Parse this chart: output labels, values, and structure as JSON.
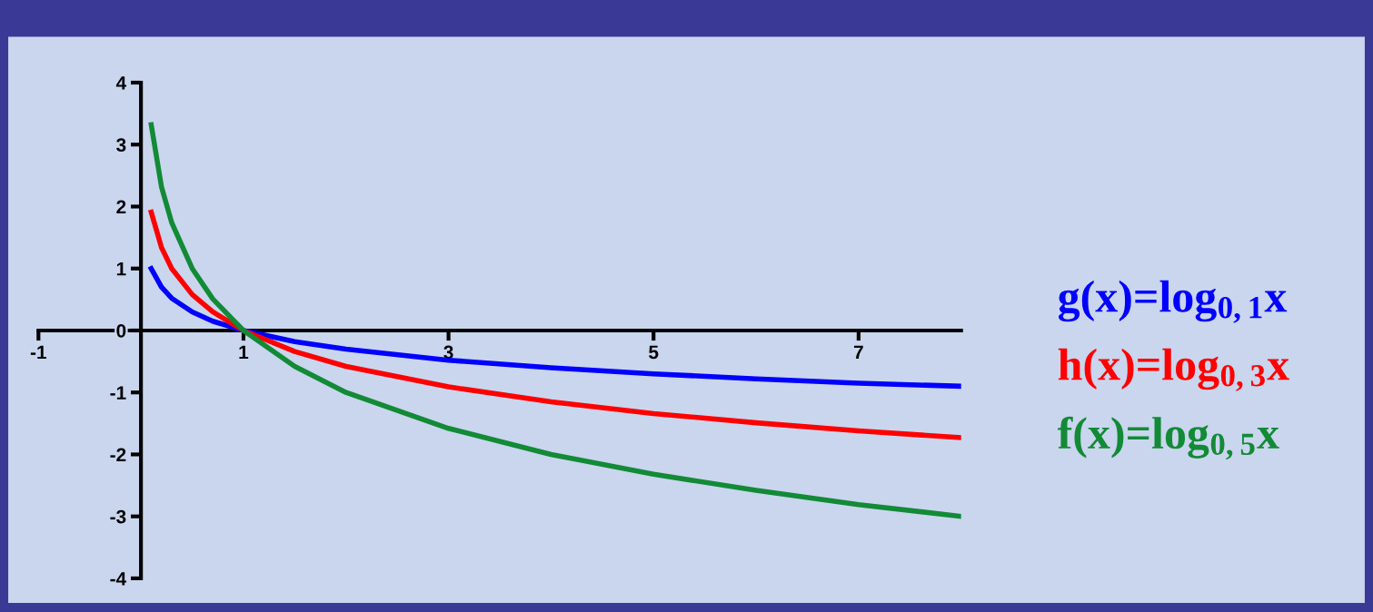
{
  "chart_data": {
    "type": "line",
    "xlim": [
      -1,
      8
    ],
    "ylim": [
      -4,
      4
    ],
    "xticks": [
      -1,
      1,
      3,
      5,
      7
    ],
    "yticks": [
      -4,
      -3,
      -2,
      -1,
      0,
      1,
      2,
      3,
      4
    ],
    "grid": false,
    "legend": "right",
    "marker": "none",
    "line_style": "solid",
    "series": [
      {
        "name": "g(x)=log$_{0,1}$x",
        "color": "#0000ff",
        "x": [
          0.1,
          0.2,
          0.3,
          0.5,
          0.7,
          1,
          1.5,
          2,
          3,
          4,
          5,
          6,
          7,
          8
        ],
        "values": [
          1,
          0.7,
          0.52,
          0.3,
          0.15,
          0,
          -0.18,
          -0.3,
          -0.48,
          -0.6,
          -0.7,
          -0.78,
          -0.85,
          -0.9
        ]
      },
      {
        "name": "h(x)=log$_{0,3}$x",
        "color": "#ff0000",
        "x": [
          0.1,
          0.2,
          0.3,
          0.5,
          0.7,
          1,
          1.5,
          2,
          3,
          4,
          5,
          6,
          7,
          8
        ],
        "values": [
          1.91,
          1.34,
          1.0,
          0.58,
          0.3,
          0,
          -0.34,
          -0.58,
          -0.91,
          -1.15,
          -1.34,
          -1.49,
          -1.62,
          -1.73
        ]
      },
      {
        "name": "f(x)=log$_{0,5}$x",
        "color": "#138a36",
        "x": [
          0.1,
          0.2,
          0.3,
          0.5,
          0.7,
          1,
          1.5,
          2,
          3,
          4,
          5,
          6,
          7,
          8
        ],
        "values": [
          3.32,
          2.32,
          1.74,
          1,
          0.51,
          0,
          -0.58,
          -1,
          -1.58,
          -2,
          -2.32,
          -2.58,
          -2.81,
          -3
        ]
      }
    ]
  }
}
